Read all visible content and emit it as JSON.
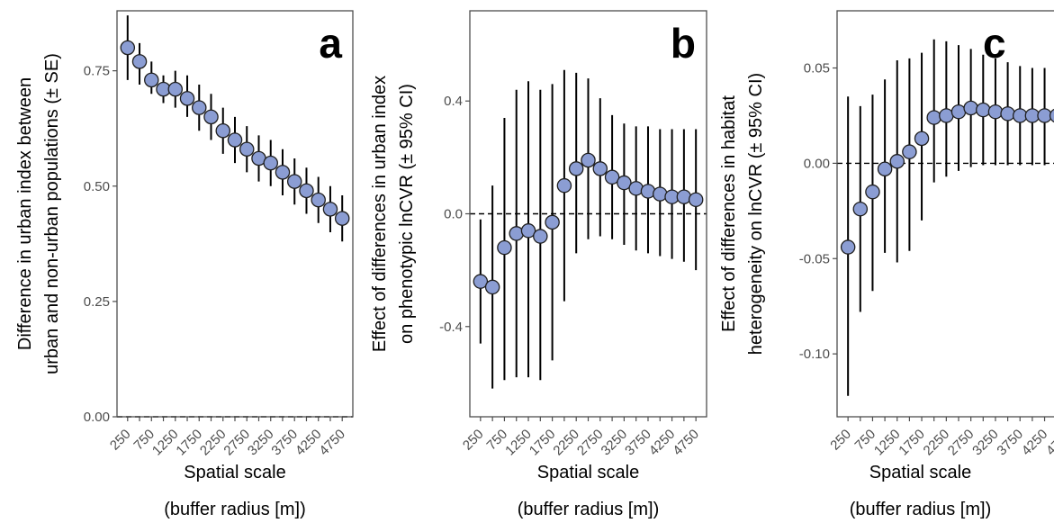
{
  "figure": {
    "x_title": "Spatial scale",
    "x_subtitle": "(buffer radius [m])",
    "x_tick_labels": [
      "250",
      "750",
      "1250",
      "1750",
      "2250",
      "2750",
      "3250",
      "3750",
      "4250",
      "4750"
    ]
  },
  "chart_data": [
    {
      "type": "scatter",
      "panel_label": "a",
      "ylabel_lines": [
        "Difference in urban index between",
        "urban and non-urban populations (± SE)"
      ],
      "ylim": [
        0.0,
        0.88
      ],
      "yticks": [
        0.0,
        0.25,
        0.5,
        0.75
      ],
      "ytick_labels": [
        "0.00",
        "0.25",
        "0.50",
        "0.75"
      ],
      "reference_line": 0,
      "x": [
        250,
        500,
        750,
        1000,
        1250,
        1500,
        1750,
        2000,
        2250,
        2500,
        2750,
        3000,
        3250,
        3500,
        3750,
        4000,
        4250,
        4500,
        4750
      ],
      "series": [
        {
          "y": [
            0.8,
            0.77,
            0.73,
            0.71,
            0.71,
            0.69,
            0.67,
            0.65,
            0.62,
            0.6,
            0.58,
            0.56,
            0.55,
            0.53,
            0.51,
            0.49,
            0.47,
            0.45,
            0.43
          ],
          "lower": [
            0.73,
            0.72,
            0.7,
            0.68,
            0.67,
            0.65,
            0.62,
            0.6,
            0.57,
            0.55,
            0.53,
            0.51,
            0.5,
            0.48,
            0.46,
            0.44,
            0.42,
            0.4,
            0.38
          ],
          "upper": [
            0.87,
            0.81,
            0.77,
            0.74,
            0.75,
            0.74,
            0.72,
            0.7,
            0.67,
            0.65,
            0.63,
            0.61,
            0.6,
            0.58,
            0.56,
            0.54,
            0.52,
            0.5,
            0.48
          ]
        }
      ]
    },
    {
      "type": "scatter",
      "panel_label": "b",
      "ylabel_lines": [
        "Effect of differences in urban index",
        "on phenotypic lnCVR (± 95% CI)"
      ],
      "ylim": [
        -0.72,
        0.72
      ],
      "yticks": [
        -0.4,
        0.0,
        0.4
      ],
      "ytick_labels": [
        "-0.4",
        "0.0",
        "0.4"
      ],
      "reference_line": 0,
      "x": [
        250,
        500,
        750,
        1000,
        1250,
        1500,
        1750,
        2000,
        2250,
        2500,
        2750,
        3000,
        3250,
        3500,
        3750,
        4000,
        4250,
        4500,
        4750
      ],
      "series": [
        {
          "y": [
            -0.24,
            -0.26,
            -0.12,
            -0.07,
            -0.06,
            -0.08,
            -0.03,
            0.1,
            0.16,
            0.19,
            0.16,
            0.13,
            0.11,
            0.09,
            0.08,
            0.07,
            0.06,
            0.06,
            0.05
          ],
          "lower": [
            -0.46,
            -0.62,
            -0.59,
            -0.58,
            -0.58,
            -0.59,
            -0.52,
            -0.31,
            -0.14,
            -0.09,
            -0.08,
            -0.09,
            -0.11,
            -0.13,
            -0.14,
            -0.15,
            -0.16,
            -0.17,
            -0.2
          ],
          "upper": [
            -0.02,
            0.1,
            0.34,
            0.44,
            0.47,
            0.44,
            0.46,
            0.51,
            0.5,
            0.48,
            0.41,
            0.35,
            0.32,
            0.31,
            0.31,
            0.3,
            0.3,
            0.3,
            0.3
          ]
        }
      ]
    },
    {
      "type": "scatter",
      "panel_label": "c",
      "ylabel_lines": [
        "Effect of differences in habitat",
        "heterogeneity on lnCVR (± 95% CI)"
      ],
      "ylim": [
        -0.133,
        0.08
      ],
      "yticks": [
        -0.1,
        -0.05,
        0.0,
        0.05
      ],
      "ytick_labels": [
        "-0.10",
        "-0.05",
        "0.00",
        "0.05"
      ],
      "reference_line": 0,
      "x": [
        250,
        500,
        750,
        1000,
        1250,
        1500,
        1750,
        2000,
        2250,
        2500,
        2750,
        3000,
        3250,
        3500,
        3750,
        4000,
        4250,
        4500,
        4750
      ],
      "series": [
        {
          "y": [
            -0.044,
            -0.024,
            -0.015,
            -0.003,
            0.001,
            0.006,
            0.013,
            0.024,
            0.025,
            0.027,
            0.029,
            0.028,
            0.027,
            0.026,
            0.025,
            0.025,
            0.025,
            0.025,
            0.026
          ],
          "lower": [
            -0.122,
            -0.078,
            -0.067,
            -0.047,
            -0.052,
            -0.046,
            -0.03,
            -0.01,
            -0.007,
            -0.004,
            -0.002,
            -0.001,
            -0.001,
            -0.001,
            -0.001,
            -0.001,
            -0.001,
            -0.001,
            0.0
          ],
          "upper": [
            0.035,
            0.03,
            0.036,
            0.044,
            0.054,
            0.055,
            0.058,
            0.065,
            0.064,
            0.062,
            0.06,
            0.057,
            0.055,
            0.053,
            0.051,
            0.05,
            0.05,
            0.05,
            0.05
          ]
        }
      ]
    }
  ],
  "style": {
    "point_fill": "#8b9dd3",
    "point_stroke": "#1f1f1f",
    "errorbar": "#000000",
    "panel_border": "#4d4d4d",
    "tick_text": "#4d4d4d"
  }
}
